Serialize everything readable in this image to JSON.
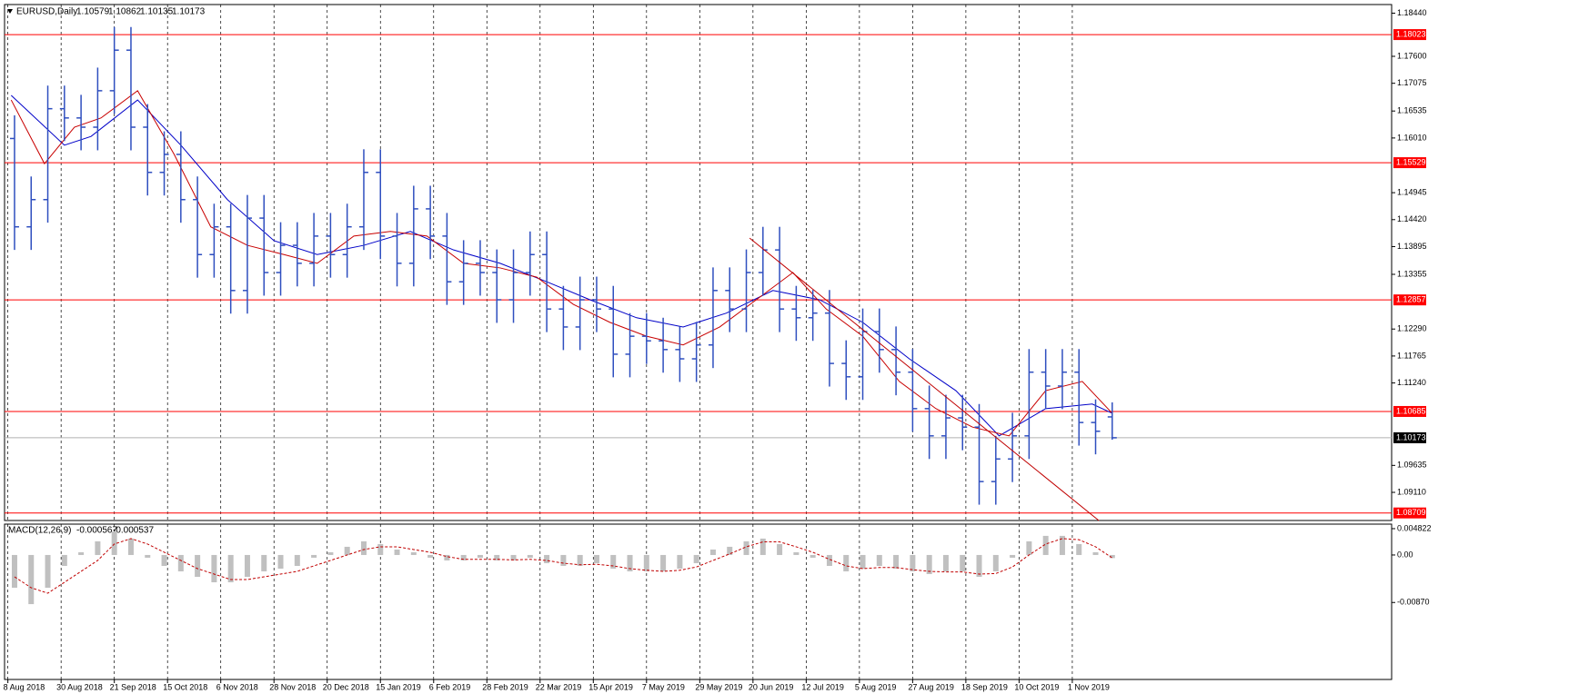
{
  "chart_data": [
    {
      "type": "ohlc",
      "symbol": "EURUSD,Daily",
      "color": "#2f4fbf",
      "x": [
        2,
        7,
        12,
        17,
        22,
        27,
        32,
        37,
        42,
        47,
        52,
        57,
        62,
        67,
        72,
        77,
        82,
        87,
        92,
        97,
        102,
        107,
        112,
        117,
        122,
        127,
        132,
        137,
        142,
        147,
        152,
        157,
        162,
        167,
        172,
        177,
        182,
        187,
        192,
        197,
        202,
        207,
        212,
        217,
        222,
        227,
        232,
        237,
        242,
        247,
        252,
        257,
        262,
        267,
        272,
        277,
        282,
        287,
        292,
        297,
        302,
        307,
        312,
        317,
        322,
        327,
        332
      ],
      "open": [
        1.16,
        1.1428,
        1.1481,
        1.1658,
        1.164,
        1.1622,
        1.1693,
        1.1772,
        1.1622,
        1.1534,
        1.1569,
        1.1481,
        1.1374,
        1.1428,
        1.1304,
        1.1445,
        1.1339,
        1.1392,
        1.1357,
        1.141,
        1.1374,
        1.1428,
        1.1534,
        1.141,
        1.1357,
        1.1463,
        1.141,
        1.1321,
        1.1357,
        1.1339,
        1.1286,
        1.1339,
        1.1374,
        1.1268,
        1.1233,
        1.1286,
        1.1268,
        1.118,
        1.1215,
        1.1206,
        1.1189,
        1.1171,
        1.1198,
        1.1304,
        1.1268,
        1.1339,
        1.1383,
        1.1268,
        1.1251,
        1.126,
        1.1162,
        1.1136,
        1.1224,
        1.1189,
        1.1145,
        1.1074,
        1.1021,
        1.1056,
        1.1038,
        1.0932,
        1.0976,
        1.1021,
        1.1145,
        1.1118,
        1.1145,
        1.1047,
        1.10579
      ],
      "high": [
        1.1645,
        1.1526,
        1.1703,
        1.1703,
        1.1685,
        1.1738,
        1.1817,
        1.1817,
        1.1667,
        1.1614,
        1.1614,
        1.1526,
        1.1473,
        1.1473,
        1.149,
        1.149,
        1.1437,
        1.1437,
        1.1455,
        1.1455,
        1.1473,
        1.1579,
        1.1579,
        1.1455,
        1.1508,
        1.1508,
        1.1455,
        1.1402,
        1.1402,
        1.1384,
        1.1384,
        1.1419,
        1.1419,
        1.1313,
        1.1331,
        1.1331,
        1.1313,
        1.126,
        1.126,
        1.1251,
        1.1234,
        1.1243,
        1.1349,
        1.1349,
        1.1384,
        1.1428,
        1.1428,
        1.1313,
        1.1305,
        1.1305,
        1.1207,
        1.1269,
        1.1269,
        1.1234,
        1.119,
        1.1119,
        1.1101,
        1.1101,
        1.1083,
        1.1021,
        1.1066,
        1.119,
        1.119,
        1.119,
        1.119,
        1.1092,
        1.10862
      ],
      "low": [
        1.1383,
        1.1383,
        1.1436,
        1.1595,
        1.1577,
        1.1577,
        1.1648,
        1.1577,
        1.1489,
        1.1489,
        1.1436,
        1.1329,
        1.1329,
        1.1259,
        1.1259,
        1.1294,
        1.1294,
        1.1312,
        1.1312,
        1.1329,
        1.1329,
        1.1383,
        1.1365,
        1.1312,
        1.1312,
        1.1365,
        1.1276,
        1.1276,
        1.1294,
        1.1241,
        1.1241,
        1.1294,
        1.1223,
        1.1188,
        1.1188,
        1.1223,
        1.1135,
        1.1135,
        1.1161,
        1.1144,
        1.1126,
        1.1126,
        1.1153,
        1.1223,
        1.1223,
        1.1294,
        1.1223,
        1.1206,
        1.1206,
        1.1117,
        1.1091,
        1.1091,
        1.1144,
        1.11,
        1.1029,
        1.0976,
        1.0976,
        1.0993,
        1.0887,
        1.0887,
        1.0931,
        1.0976,
        1.1073,
        1.1073,
        1.1002,
        1.0985,
        1.10135
      ],
      "close": [
        1.1428,
        1.1481,
        1.1658,
        1.164,
        1.1622,
        1.1693,
        1.1772,
        1.1622,
        1.1534,
        1.1569,
        1.1481,
        1.1374,
        1.1428,
        1.1304,
        1.1445,
        1.1339,
        1.1392,
        1.1357,
        1.141,
        1.1374,
        1.1428,
        1.1534,
        1.141,
        1.1357,
        1.1463,
        1.141,
        1.1321,
        1.1357,
        1.1339,
        1.1286,
        1.1339,
        1.1374,
        1.1268,
        1.1233,
        1.1286,
        1.1268,
        1.118,
        1.1215,
        1.1206,
        1.1189,
        1.1171,
        1.1198,
        1.1304,
        1.1268,
        1.1339,
        1.1383,
        1.1268,
        1.1251,
        1.126,
        1.1162,
        1.1136,
        1.1224,
        1.1189,
        1.1145,
        1.1074,
        1.1021,
        1.1056,
        1.1038,
        1.0932,
        1.0976,
        1.1021,
        1.1145,
        1.1118,
        1.1145,
        1.1047,
        1.103,
        1.10173
      ],
      "lines": [
        {
          "color": "#0000c8",
          "x": [
            1,
            17,
            25,
            39,
            52,
            66,
            80,
            93,
            107,
            121,
            134,
            148,
            162,
            175,
            189,
            203,
            216,
            230,
            244,
            257,
            271,
            285,
            298,
            312,
            326,
            332
          ],
          "values": [
            1.1684,
            1.1587,
            1.1604,
            1.1675,
            1.1587,
            1.1481,
            1.1401,
            1.1374,
            1.1392,
            1.1419,
            1.1383,
            1.1357,
            1.1321,
            1.1286,
            1.1251,
            1.1233,
            1.126,
            1.1304,
            1.1286,
            1.1242,
            1.1171,
            1.1109,
            1.1021,
            1.1074,
            1.1083,
            1.1065
          ]
        },
        {
          "color": "#c80000",
          "x": [
            1,
            11,
            20,
            28,
            39,
            50,
            61,
            72,
            83,
            93,
            104,
            115,
            126,
            137,
            148,
            159,
            170,
            181,
            192,
            203,
            214,
            225,
            236,
            246,
            257,
            268,
            279,
            290,
            301,
            312,
            323,
            332
          ],
          "values": [
            1.1675,
            1.1551,
            1.1622,
            1.164,
            1.1693,
            1.1569,
            1.1428,
            1.1392,
            1.1374,
            1.1357,
            1.141,
            1.1419,
            1.141,
            1.1357,
            1.1348,
            1.133,
            1.1277,
            1.1242,
            1.1215,
            1.1198,
            1.1233,
            1.1286,
            1.1339,
            1.1268,
            1.1215,
            1.1127,
            1.1074,
            1.1038,
            1.1021,
            1.1109,
            1.1127,
            1.1065
          ]
        }
      ],
      "hlines": {
        "color": "#ff0000",
        "values": [
          1.18023,
          1.15529,
          1.12857,
          1.10685,
          1.08709
        ]
      },
      "trendline": {
        "color": "#c00000",
        "x": [
          223,
          328
        ],
        "values": [
          1.1406,
          1.0856
        ]
      },
      "xlim": [
        -1,
        416
      ],
      "ylim": [
        1.08562,
        1.18608
      ],
      "yticks": [
        {
          "value": 1.1844,
          "label": "1.18440"
        },
        {
          "value": 1.176,
          "label": "1.17600"
        },
        {
          "value": 1.17075,
          "label": "1.17075"
        },
        {
          "value": 1.16535,
          "label": "1.16535"
        },
        {
          "value": 1.1601,
          "label": "1.16010"
        },
        {
          "value": 1.14945,
          "label": "1.14945"
        },
        {
          "value": 1.1442,
          "label": "1.14420"
        },
        {
          "value": 1.13895,
          "label": "1.13895"
        },
        {
          "value": 1.13355,
          "label": "1.13355"
        },
        {
          "value": 1.1229,
          "label": "1.12290"
        },
        {
          "value": 1.11765,
          "label": "1.11765"
        },
        {
          "value": 1.1124,
          "label": "1.11240"
        },
        {
          "value": 1.09635,
          "label": "1.09635"
        },
        {
          "value": 1.0911,
          "label": "1.09110"
        }
      ],
      "xticks": [
        {
          "value": 0,
          "label": "8 Aug 2018"
        },
        {
          "value": 16,
          "label": "30 Aug 2018"
        },
        {
          "value": 32,
          "label": "21 Sep 2018"
        },
        {
          "value": 48,
          "label": "15 Oct 2018"
        },
        {
          "value": 64,
          "label": "6 Nov 2018"
        },
        {
          "value": 80,
          "label": "28 Nov 2018"
        },
        {
          "value": 96,
          "label": "20 Dec 2018"
        },
        {
          "value": 112,
          "label": "15 Jan 2019"
        },
        {
          "value": 128,
          "label": "6 Feb 2019"
        },
        {
          "value": 144,
          "label": "28 Feb 2019"
        },
        {
          "value": 160,
          "label": "22 Mar 2019"
        },
        {
          "value": 176,
          "label": "15 Apr 2019"
        },
        {
          "value": 192,
          "label": "7 May 2019"
        },
        {
          "value": 208,
          "label": "29 May 2019"
        },
        {
          "value": 224,
          "label": "20 Jun 2019"
        },
        {
          "value": 240,
          "label": "12 Jul 2019"
        },
        {
          "value": 256,
          "label": "5 Aug 2019"
        },
        {
          "value": 272,
          "label": "27 Aug 2019"
        },
        {
          "value": 288,
          "label": "18 Sep 2019"
        },
        {
          "value": 304,
          "label": "10 Oct 2019"
        },
        {
          "value": 320,
          "label": "1 Nov 2019"
        }
      ],
      "grid": true
    },
    {
      "type": "macd",
      "label": "MACD(12,26,9)",
      "color": "#c0c0c0",
      "signal_color": "#c00000",
      "values": [
        -0.006,
        -0.009,
        -0.006,
        -0.002,
        0.0005,
        0.0025,
        0.0043,
        0.003,
        -0.0005,
        -0.002,
        -0.003,
        -0.004,
        -0.005,
        -0.005,
        -0.004,
        -0.003,
        -0.0025,
        -0.002,
        -0.0005,
        0.0005,
        0.0015,
        0.0025,
        0.002,
        0.001,
        0.0005,
        -0.0005,
        -0.001,
        -0.001,
        -0.0005,
        -0.001,
        -0.001,
        -0.0005,
        -0.0015,
        -0.002,
        -0.002,
        -0.0015,
        -0.0025,
        -0.003,
        -0.003,
        -0.003,
        -0.0025,
        -0.0015,
        0.001,
        0.0015,
        0.0025,
        0.003,
        0.002,
        0.0005,
        -0.0005,
        -0.002,
        -0.003,
        -0.0025,
        -0.002,
        -0.0025,
        -0.003,
        -0.0035,
        -0.003,
        -0.003,
        -0.004,
        -0.003,
        -0.0005,
        0.0025,
        0.0035,
        0.0035,
        0.002,
        0.0005,
        -0.000567
      ],
      "signal": [
        -0.004,
        -0.006,
        -0.007,
        -0.005,
        -0.003,
        -0.001,
        0.002,
        0.003,
        0.002,
        0.0005,
        -0.001,
        -0.0025,
        -0.0035,
        -0.0045,
        -0.0045,
        -0.004,
        -0.0035,
        -0.003,
        -0.002,
        -0.001,
        0,
        0.001,
        0.0015,
        0.0015,
        0.001,
        0.0005,
        -0.0003,
        -0.0008,
        -0.0008,
        -0.0008,
        -0.0009,
        -0.0008,
        -0.001,
        -0.0015,
        -0.0018,
        -0.0017,
        -0.002,
        -0.0025,
        -0.0028,
        -0.003,
        -0.0028,
        -0.0022,
        -0.001,
        0.0002,
        0.0015,
        0.0024,
        0.0024,
        0.0015,
        0.0005,
        -0.0008,
        -0.002,
        -0.0025,
        -0.0023,
        -0.0023,
        -0.0027,
        -0.003,
        -0.0031,
        -0.0031,
        -0.0035,
        -0.0034,
        -0.0022,
        0,
        0.002,
        0.003,
        0.0028,
        0.0015,
        -0.000537
      ],
      "ylim": [
        -0.0228,
        0.00565
      ],
      "yticks": [
        0.004822,
        {
          "value": 0,
          "label": "0.00"
        },
        {
          "value": -0.0087,
          "label": "-0.00870"
        }
      ]
    }
  ]
}
